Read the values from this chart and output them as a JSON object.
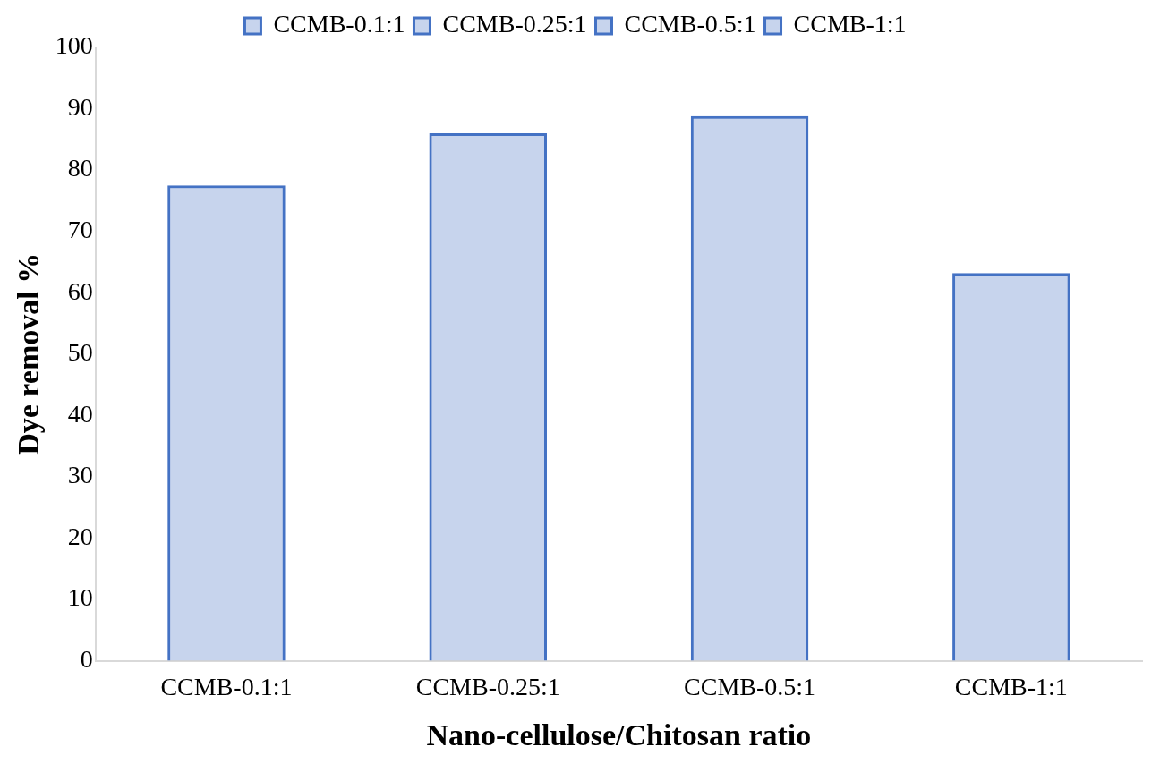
{
  "chart_data": {
    "type": "bar",
    "xlabel": "Nano-cellulose/Chitosan ratio",
    "ylabel": "Dye removal %",
    "categories": [
      "CCMB-0.1:1",
      "CCMB-0.25:1",
      "CCMB-0.5:1",
      "CCMB-1:1"
    ],
    "series": [
      {
        "name": "CCMB-0.1:1",
        "color": "#4472c4",
        "values": [
          77.5,
          null,
          null,
          null
        ]
      },
      {
        "name": "CCMB-0.25:1",
        "color": "#4472c4",
        "values": [
          null,
          86,
          null,
          null
        ]
      },
      {
        "name": "CCMB-0.5:1",
        "color": "#4472c4",
        "values": [
          null,
          null,
          88.8,
          null
        ]
      },
      {
        "name": "CCMB-1:1",
        "color": "#4472c4",
        "values": [
          null,
          null,
          null,
          63.2
        ]
      }
    ],
    "ylim": [
      0,
      100
    ],
    "yticks": [
      0,
      10,
      20,
      30,
      40,
      50,
      60,
      70,
      80,
      90,
      100
    ],
    "grid": false,
    "legend": "top"
  }
}
